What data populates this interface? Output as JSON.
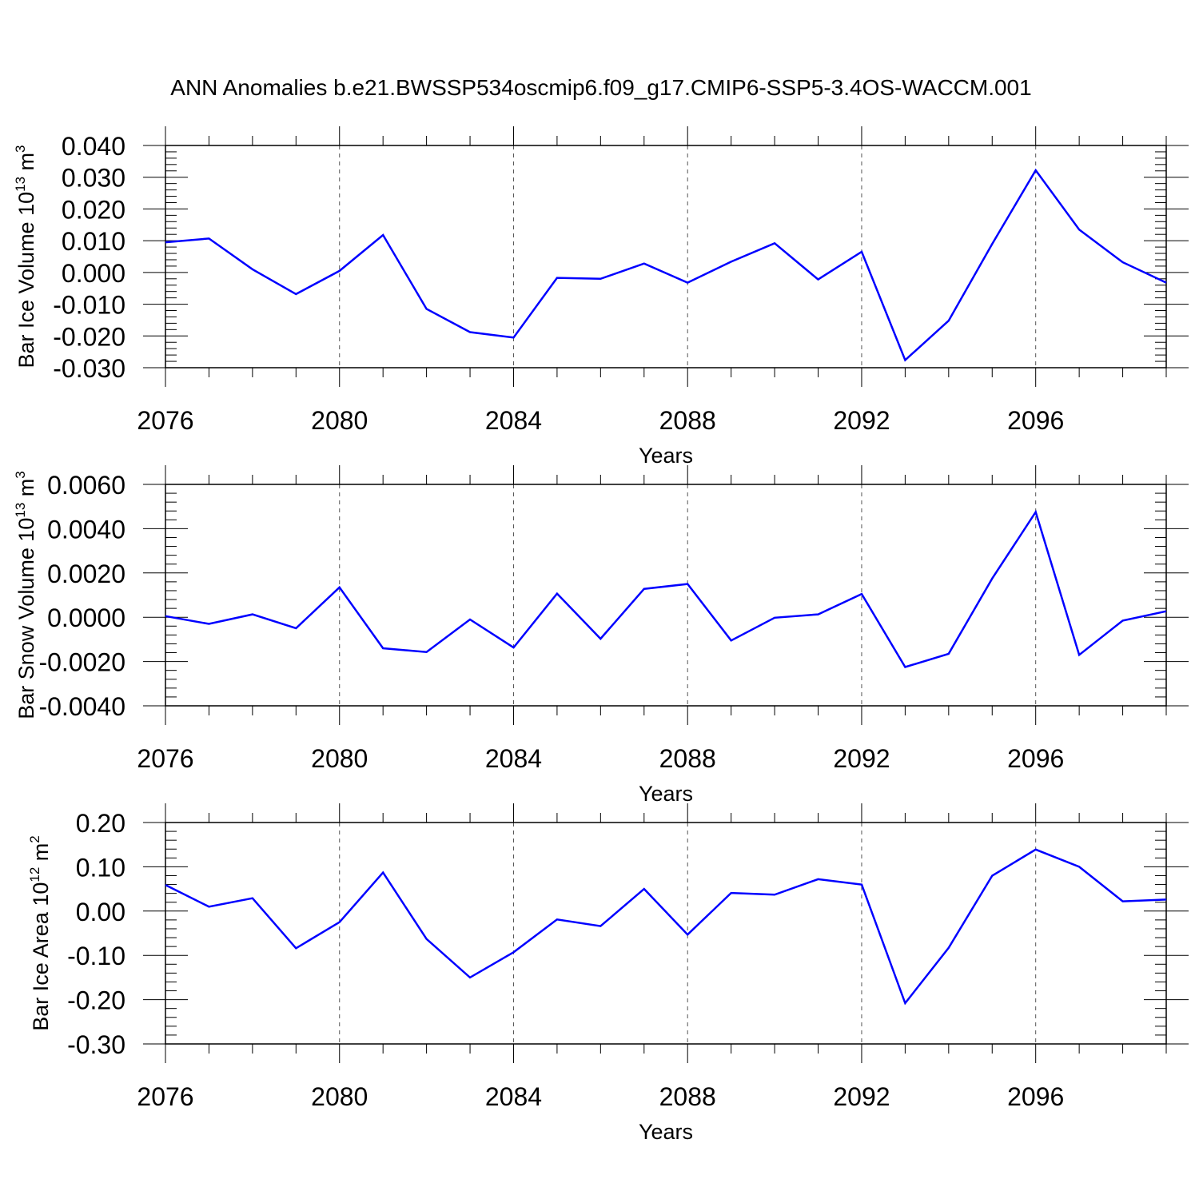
{
  "figure": {
    "title": "ANN Anomalies b.e21.BWSSP534oscmip6.f09_g17.CMIP6-SSP5-3.4OS-WACCM.001"
  },
  "colors": {
    "line": "#0000ff",
    "axes": "#000000",
    "grid": "#555555",
    "background": "#ffffff"
  },
  "chart_data": [
    {
      "type": "line",
      "xlabel": "Years",
      "ylabel": {
        "text": "Bar Ice Volume 10",
        "exponent": "13",
        "unit": " m",
        "unit_exponent": "3"
      },
      "xlim": [
        2076,
        2099
      ],
      "ylim": [
        -0.03,
        0.04
      ],
      "xticks": [
        2076,
        2080,
        2084,
        2088,
        2092,
        2096
      ],
      "xtick_labels": [
        "2076",
        "2080",
        "2084",
        "2088",
        "2092",
        "2096"
      ],
      "yticks": [
        -0.03,
        -0.02,
        -0.01,
        0.0,
        0.01,
        0.02,
        0.03,
        0.04
      ],
      "ytick_labels": [
        "-0.030",
        "-0.020",
        "-0.010",
        "0.000",
        "0.010",
        "0.020",
        "0.030",
        "0.040"
      ],
      "grid": "vertical dashed at labeled years",
      "series": [
        {
          "x": [
            2076,
            2077,
            2078,
            2079,
            2080,
            2081,
            2082,
            2083,
            2084,
            2085,
            2086,
            2087,
            2088,
            2089,
            2090,
            2091,
            2092,
            2093,
            2094,
            2095,
            2096,
            2097,
            2098,
            2099
          ],
          "values": [
            0.0095,
            0.0107,
            0.001,
            -0.0068,
            0.0005,
            0.0118,
            -0.0115,
            -0.0188,
            -0.0205,
            -0.0017,
            -0.002,
            0.0028,
            -0.0032,
            0.0034,
            0.0092,
            -0.0022,
            0.0065,
            -0.0276,
            -0.0152,
            0.009,
            0.0322,
            0.0135,
            0.0032,
            -0.0032
          ]
        }
      ]
    },
    {
      "type": "line",
      "xlabel": "Years",
      "ylabel": {
        "text": "Bar Snow Volume 10",
        "exponent": "13",
        "unit": " m",
        "unit_exponent": "3"
      },
      "xlim": [
        2076,
        2099
      ],
      "ylim": [
        -0.004,
        0.006
      ],
      "xticks": [
        2076,
        2080,
        2084,
        2088,
        2092,
        2096
      ],
      "xtick_labels": [
        "2076",
        "2080",
        "2084",
        "2088",
        "2092",
        "2096"
      ],
      "yticks": [
        -0.004,
        -0.002,
        0.0,
        0.002,
        0.004,
        0.006
      ],
      "ytick_labels": [
        "-0.0040",
        "-0.0020",
        "0.0000",
        "0.0020",
        "0.0040",
        "0.0060"
      ],
      "grid": "vertical dashed at labeled years",
      "series": [
        {
          "x": [
            2076,
            2077,
            2078,
            2079,
            2080,
            2081,
            2082,
            2083,
            2084,
            2085,
            2086,
            2087,
            2088,
            2089,
            2090,
            2091,
            2092,
            2093,
            2094,
            2095,
            2096,
            2097,
            2098,
            2099
          ],
          "values": [
            5e-05,
            -0.0003,
            0.00013,
            -0.0005,
            0.00135,
            -0.0014,
            -0.00157,
            -0.0001,
            -0.00137,
            0.00107,
            -0.00097,
            0.00128,
            0.0015,
            -0.00105,
            -2e-05,
            0.00013,
            0.00105,
            -0.00225,
            -0.00165,
            0.00175,
            0.00475,
            -0.0017,
            -0.00015,
            0.00027
          ]
        }
      ]
    },
    {
      "type": "line",
      "xlabel": "Years",
      "ylabel": {
        "text": "Bar Ice Area 10",
        "exponent": "12",
        "unit": " m",
        "unit_exponent": "2"
      },
      "xlim": [
        2076,
        2099
      ],
      "ylim": [
        -0.3,
        0.2
      ],
      "xticks": [
        2076,
        2080,
        2084,
        2088,
        2092,
        2096
      ],
      "xtick_labels": [
        "2076",
        "2080",
        "2084",
        "2088",
        "2092",
        "2096"
      ],
      "yticks": [
        -0.3,
        -0.2,
        -0.1,
        0.0,
        0.1,
        0.2
      ],
      "ytick_labels": [
        "-0.30",
        "-0.20",
        "-0.10",
        "0.00",
        "0.10",
        "0.20"
      ],
      "grid": "vertical dashed at labeled years",
      "series": [
        {
          "x": [
            2076,
            2077,
            2078,
            2079,
            2080,
            2081,
            2082,
            2083,
            2084,
            2085,
            2086,
            2087,
            2088,
            2089,
            2090,
            2091,
            2092,
            2093,
            2094,
            2095,
            2096,
            2097,
            2098,
            2099
          ],
          "values": [
            0.059,
            0.01,
            0.029,
            -0.084,
            -0.025,
            0.087,
            -0.063,
            -0.15,
            -0.093,
            -0.019,
            -0.034,
            0.05,
            -0.053,
            0.041,
            0.037,
            0.072,
            0.06,
            -0.208,
            -0.083,
            0.08,
            0.139,
            0.1,
            0.022,
            0.026
          ]
        }
      ]
    }
  ]
}
